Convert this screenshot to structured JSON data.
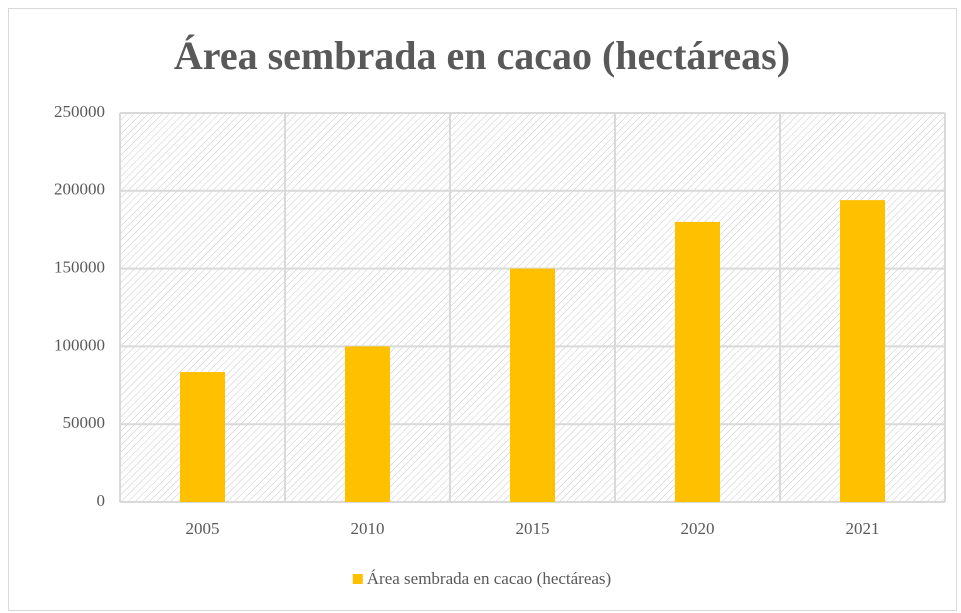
{
  "chart_data": {
    "type": "bar",
    "title": "Área sembrada en cacao (hectáreas)",
    "categories": [
      "2005",
      "2010",
      "2015",
      "2020",
      "2021"
    ],
    "series": [
      {
        "name": "Área sembrada en cacao (hectáreas)",
        "color": "#ffc000",
        "values": [
          83500,
          100000,
          150000,
          180000,
          194000
        ]
      }
    ],
    "ylim": [
      0,
      250000
    ],
    "yticks": [
      0,
      50000,
      100000,
      150000,
      200000,
      250000
    ],
    "grid": true,
    "legend": "bottom"
  }
}
